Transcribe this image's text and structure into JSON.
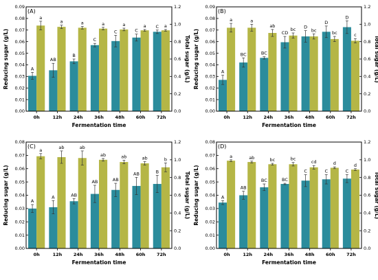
{
  "chart_data": [
    {
      "type": "bar",
      "panel_label": "(A)",
      "categories": [
        "0h",
        "12h",
        "24h",
        "36h",
        "48h",
        "60h",
        "72h"
      ],
      "xlabel": "Fermentation time",
      "ylabel": "Reducing sugar (g/L)",
      "y2label": "Total sugar (g/L)",
      "ylim": [
        0,
        0.09
      ],
      "y2lim": [
        0,
        1.2
      ],
      "yticks": [
        "0.00",
        "0.01",
        "0.02",
        "0.03",
        "0.04",
        "0.05",
        "0.06",
        "0.07",
        "0.08",
        "0.09"
      ],
      "y2ticks": [
        "0.0",
        "0.2",
        "0.4",
        "0.6",
        "0.8",
        "1.0",
        "1.2"
      ],
      "series": [
        {
          "values": [
            0.0305,
            0.0353,
            0.043,
            0.057,
            0.0605,
            0.0635,
            0.0685
          ],
          "errors": [
            0.003,
            0.006,
            0.002,
            0.0015,
            0.005,
            0.003,
            0.0015
          ],
          "labels": [
            "A",
            "AB",
            "B",
            "C",
            "C",
            "C",
            "C"
          ]
        },
        {
          "values": [
            0.985,
            0.97,
            0.96,
            0.95,
            0.94,
            0.93,
            0.93
          ],
          "errors": [
            0.05,
            0.02,
            0.015,
            0.015,
            0.015,
            0.01,
            0.01
          ],
          "labels": [
            "a",
            "a",
            "a",
            "a",
            "a",
            "a",
            "a"
          ]
        }
      ]
    },
    {
      "type": "bar",
      "panel_label": "(B)",
      "categories": [
        "0h",
        "12h",
        "24h",
        "36h",
        "48h",
        "60h",
        "72h"
      ],
      "xlabel": "Fermentation time",
      "ylabel": "Reducing sugar (g/L)",
      "y2label": "Total sugar (g/L)",
      "ylim": [
        0,
        0.09
      ],
      "y2lim": [
        0,
        1.2
      ],
      "yticks": [
        "0.00",
        "0.01",
        "0.02",
        "0.03",
        "0.04",
        "0.05",
        "0.06",
        "0.07",
        "0.08",
        "0.09"
      ],
      "y2ticks": [
        "0.0",
        "0.2",
        "0.4",
        "0.6",
        "0.8",
        "1.0",
        "1.2"
      ],
      "series": [
        {
          "values": [
            0.027,
            0.042,
            0.046,
            0.0595,
            0.0645,
            0.0685,
            0.0725
          ],
          "errors": [
            0.004,
            0.004,
            0.001,
            0.005,
            0.005,
            0.005,
            0.0055
          ],
          "labels": [
            "A",
            "BC",
            "BC",
            "CD",
            "D",
            "D",
            "D"
          ]
        },
        {
          "values": [
            0.96,
            0.96,
            0.9,
            0.87,
            0.86,
            0.83,
            0.81
          ],
          "errors": [
            0.05,
            0.04,
            0.04,
            0.03,
            0.03,
            0.03,
            0.025
          ],
          "labels": [
            "a",
            "a",
            "ab",
            "bc",
            "bc",
            "bc",
            "c"
          ]
        }
      ]
    },
    {
      "type": "bar",
      "panel_label": "(C)",
      "categories": [
        "0h",
        "12h",
        "24h",
        "36h",
        "48h",
        "60h",
        "72h"
      ],
      "xlabel": "Fermentation time",
      "ylabel": "Reducing sugar (g/L)",
      "y2label": "Total sugar (g/L)",
      "ylim": [
        0,
        0.08
      ],
      "y2lim": [
        0,
        1.2
      ],
      "yticks": [
        "0.00",
        "0.01",
        "0.02",
        "0.03",
        "0.04",
        "0.05",
        "0.06",
        "0.07",
        "0.08"
      ],
      "y2ticks": [
        "0.0",
        "0.2",
        "0.4",
        "0.6",
        "0.8",
        "1.0",
        "1.2"
      ],
      "series": [
        {
          "values": [
            0.03,
            0.031,
            0.0355,
            0.041,
            0.044,
            0.047,
            0.0485
          ],
          "errors": [
            0.003,
            0.005,
            0.002,
            0.0065,
            0.005,
            0.0065,
            0.0065
          ],
          "labels": [
            "A",
            "A",
            "AB",
            "AB",
            "AB",
            "AB",
            "B"
          ]
        },
        {
          "values": [
            1.04,
            1.03,
            1.02,
            1.0,
            0.975,
            0.96,
            0.915
          ],
          "errors": [
            0.03,
            0.07,
            0.08,
            0.015,
            0.02,
            0.02,
            0.05
          ],
          "labels": [
            "a",
            "ab",
            "ab",
            "ab",
            "ab",
            "ab",
            "b"
          ]
        }
      ]
    },
    {
      "type": "bar",
      "panel_label": "(D)",
      "categories": [
        "0h",
        "12h",
        "24h",
        "36h",
        "48h",
        "60h",
        "72h"
      ],
      "xlabel": "Fermentation time",
      "ylabel": "Reducing sugar (g/L)",
      "y2label": "Total sugar (g/L)",
      "ylim": [
        0,
        0.08
      ],
      "y2lim": [
        0,
        1.2
      ],
      "yticks": [
        "0.00",
        "0.01",
        "0.02",
        "0.03",
        "0.04",
        "0.05",
        "0.06",
        "0.07",
        "0.08"
      ],
      "y2ticks": [
        "0.0",
        "0.2",
        "0.4",
        "0.6",
        "0.8",
        "1.0",
        "1.2"
      ],
      "series": [
        {
          "values": [
            0.0345,
            0.04,
            0.046,
            0.0485,
            0.051,
            0.052,
            0.0525
          ],
          "errors": [
            0.0015,
            0.003,
            0.0025,
            0.0005,
            0.0045,
            0.0035,
            0.003
          ],
          "labels": [
            "A",
            "AB",
            "BC",
            "BC",
            "C",
            "C",
            "C"
          ]
        },
        {
          "values": [
            0.99,
            0.975,
            0.95,
            0.95,
            0.915,
            0.91,
            0.89
          ],
          "errors": [
            0.01,
            0.01,
            0.01,
            0.02,
            0.02,
            0.01,
            0.01
          ],
          "labels": [
            "a",
            "ab",
            "bc",
            "bc",
            "cd",
            "d",
            "d"
          ]
        }
      ]
    }
  ],
  "colors": {
    "reducing_bar": "#2b8c9c",
    "total_bar": "#b5b646",
    "axis": "#000000"
  }
}
